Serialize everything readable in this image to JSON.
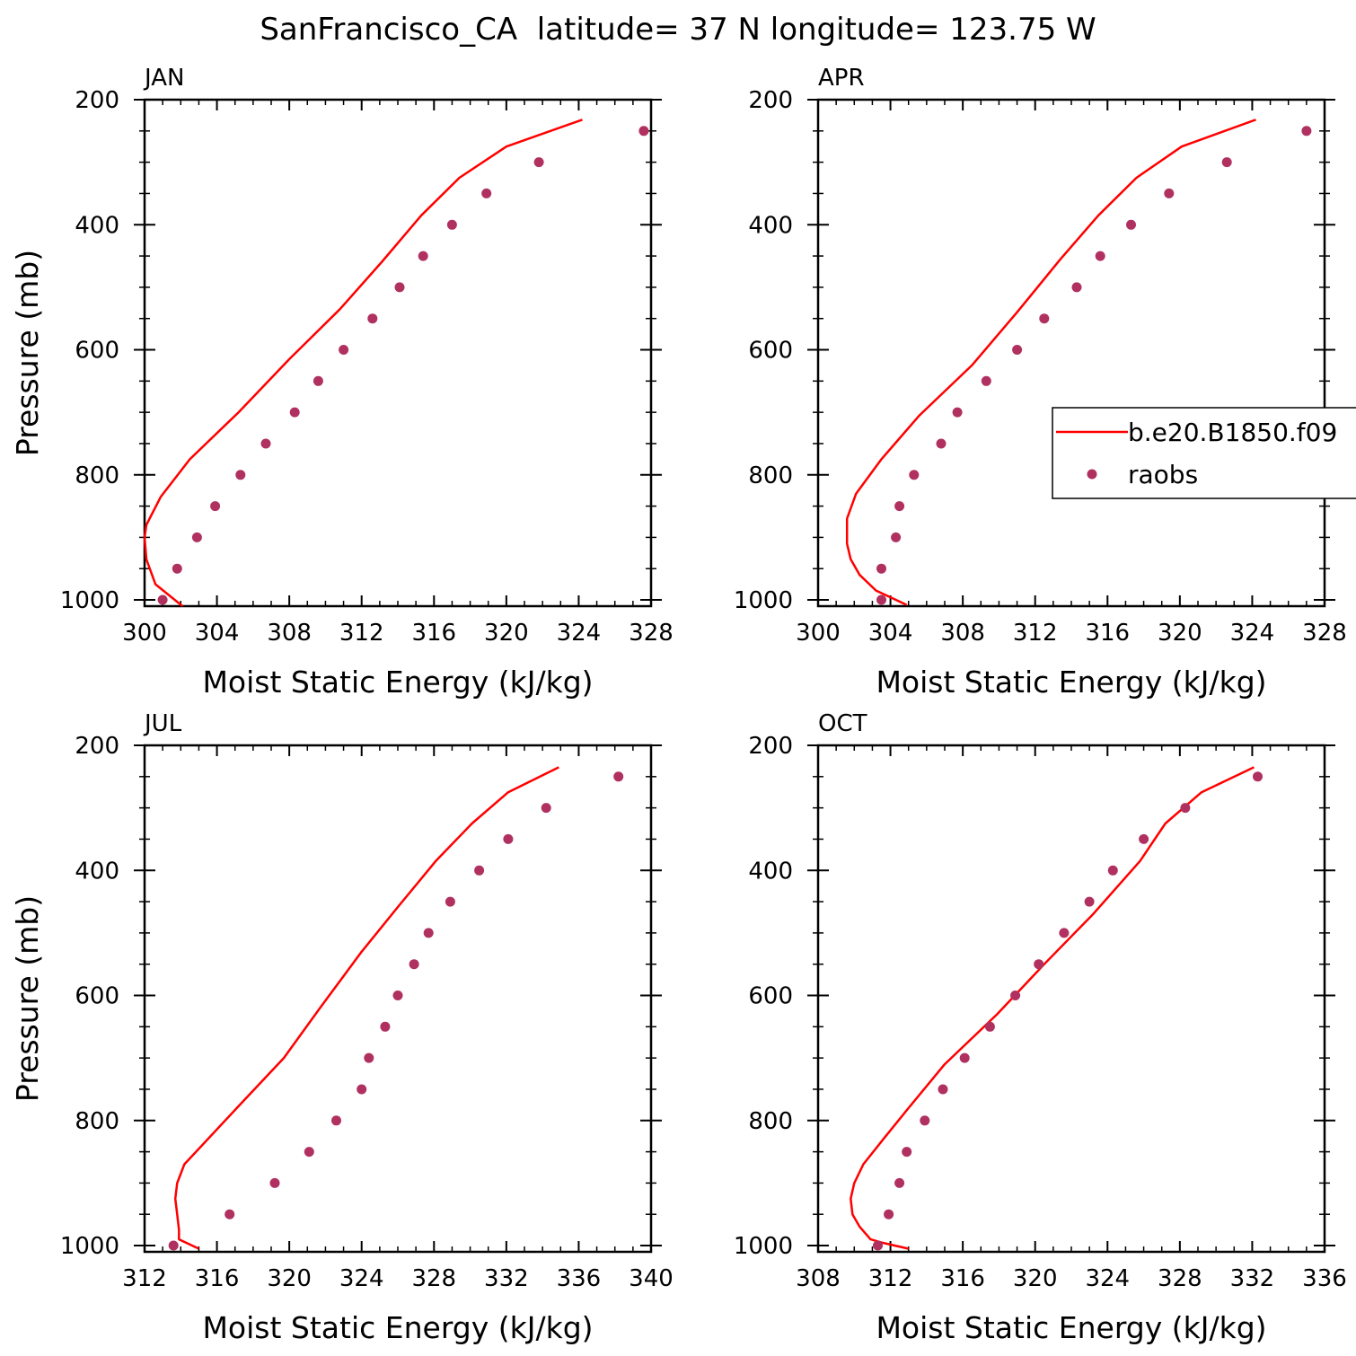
{
  "figure": {
    "title": "SanFrancisco_CA  latitude= 37 N longitude= 123.75 W",
    "legend": {
      "entries": [
        {
          "label": "b.e20.B1850.f09",
          "kind": "line"
        },
        {
          "label": "raobs",
          "kind": "marker"
        }
      ]
    },
    "colors": {
      "model_line": "#ff0000",
      "obs_marker": "#b03060",
      "axes": "#000000"
    }
  },
  "chart_data": [
    {
      "type": "line",
      "panel_label": "JAN",
      "xlabel": "Moist Static Energy (kJ/kg)",
      "ylabel": "Pressure (mb)",
      "xlim": [
        300,
        328
      ],
      "ylim": [
        200,
        1010
      ],
      "y_inverted": true,
      "xticks": [
        "300",
        "304",
        "308",
        "312",
        "316",
        "320",
        "324",
        "328"
      ],
      "yticks": [
        "200",
        "400",
        "600",
        "800",
        "1000"
      ],
      "series": [
        {
          "name": "b.e20.B1850.f09",
          "style": "line",
          "x": [
            302.1,
            300.6,
            300.1,
            300.0,
            300.1,
            300.9,
            302.5,
            305.2,
            308.0,
            310.8,
            313.1,
            315.3,
            317.4,
            320.0,
            324.2
          ],
          "y": [
            1010,
            975,
            935,
            900,
            880,
            835,
            775,
            700,
            615,
            535,
            460,
            385,
            325,
            275,
            232
          ]
        },
        {
          "name": "raobs",
          "style": "marker",
          "x": [
            301.0,
            301.8,
            302.9,
            303.9,
            305.3,
            306.7,
            308.3,
            309.6,
            311.0,
            312.6,
            314.1,
            315.4,
            317.0,
            318.9,
            321.8,
            327.6
          ],
          "y": [
            1000,
            950,
            900,
            850,
            800,
            750,
            700,
            650,
            600,
            550,
            500,
            450,
            400,
            350,
            300,
            250
          ]
        }
      ]
    },
    {
      "type": "line",
      "panel_label": "APR",
      "xlabel": "Moist Static Energy (kJ/kg)",
      "ylabel": "",
      "xlim": [
        300,
        328
      ],
      "ylim": [
        200,
        1010
      ],
      "y_inverted": true,
      "xticks": [
        "300",
        "304",
        "308",
        "312",
        "316",
        "320",
        "324",
        "328"
      ],
      "yticks": [
        "200",
        "400",
        "600",
        "800",
        "1000"
      ],
      "series": [
        {
          "name": "b.e20.B1850.f09",
          "style": "line",
          "x": [
            304.9,
            303.2,
            302.3,
            301.8,
            301.6,
            301.6,
            302.1,
            303.5,
            305.6,
            308.5,
            311.0,
            313.4,
            315.5,
            317.6,
            320.1,
            324.2
          ],
          "y": [
            1008,
            985,
            960,
            935,
            910,
            870,
            830,
            775,
            705,
            625,
            540,
            455,
            385,
            325,
            275,
            232
          ]
        },
        {
          "name": "raobs",
          "style": "marker",
          "x": [
            303.5,
            303.5,
            304.3,
            304.5,
            305.3,
            306.8,
            307.7,
            309.3,
            311.0,
            312.5,
            314.3,
            315.6,
            317.3,
            319.4,
            322.6,
            327.0
          ],
          "y": [
            1000,
            950,
            900,
            850,
            800,
            750,
            700,
            650,
            600,
            550,
            500,
            450,
            400,
            350,
            300,
            250
          ]
        }
      ]
    },
    {
      "type": "line",
      "panel_label": "JUL",
      "xlabel": "Moist Static Energy (kJ/kg)",
      "ylabel": "Pressure (mb)",
      "xlim": [
        312,
        340
      ],
      "ylim": [
        200,
        1010
      ],
      "y_inverted": true,
      "xticks": [
        "312",
        "316",
        "320",
        "324",
        "328",
        "332",
        "336",
        "340"
      ],
      "yticks": [
        "200",
        "400",
        "600",
        "800",
        "1000"
      ],
      "series": [
        {
          "name": "b.e20.B1850.f09",
          "style": "line",
          "x": [
            315.0,
            313.9,
            313.9,
            313.8,
            313.7,
            313.8,
            314.2,
            317.1,
            319.7,
            321.7,
            324.0,
            326.1,
            328.1,
            330.1,
            332.1,
            334.9
          ],
          "y": [
            1005,
            990,
            975,
            950,
            925,
            900,
            870,
            780,
            700,
            620,
            530,
            455,
            385,
            325,
            275,
            235
          ]
        },
        {
          "name": "raobs",
          "style": "marker",
          "x": [
            313.6,
            316.7,
            319.2,
            321.1,
            322.6,
            324.0,
            324.4,
            325.3,
            326.0,
            326.9,
            327.7,
            328.9,
            330.5,
            332.1,
            334.2,
            338.2
          ],
          "y": [
            1000,
            950,
            900,
            850,
            800,
            750,
            700,
            650,
            600,
            550,
            500,
            450,
            400,
            350,
            300,
            250
          ]
        }
      ]
    },
    {
      "type": "line",
      "panel_label": "OCT",
      "xlabel": "Moist Static Energy (kJ/kg)",
      "ylabel": "",
      "xlim": [
        308,
        336
      ],
      "ylim": [
        200,
        1010
      ],
      "y_inverted": true,
      "xticks": [
        "308",
        "312",
        "316",
        "320",
        "324",
        "328",
        "332",
        "336"
      ],
      "yticks": [
        "200",
        "400",
        "600",
        "800",
        "1000"
      ],
      "series": [
        {
          "name": "b.e20.B1850.f09",
          "style": "line",
          "x": [
            313.0,
            311.5,
            310.9,
            310.3,
            309.9,
            309.8,
            310.0,
            310.5,
            311.6,
            313.0,
            315.0,
            317.9,
            320.5,
            323.2,
            325.8,
            327.2,
            329.2,
            332.1
          ],
          "y": [
            1005,
            995,
            990,
            970,
            950,
            925,
            900,
            870,
            830,
            780,
            710,
            630,
            550,
            470,
            385,
            325,
            275,
            235
          ]
        },
        {
          "name": "raobs",
          "style": "marker",
          "x": [
            311.3,
            311.9,
            312.5,
            312.9,
            313.9,
            314.9,
            316.1,
            317.5,
            318.9,
            320.2,
            321.6,
            323.0,
            324.3,
            326.0,
            328.3,
            332.3
          ],
          "y": [
            1000,
            950,
            900,
            850,
            800,
            750,
            700,
            650,
            600,
            550,
            500,
            450,
            400,
            350,
            300,
            250
          ]
        }
      ]
    }
  ]
}
